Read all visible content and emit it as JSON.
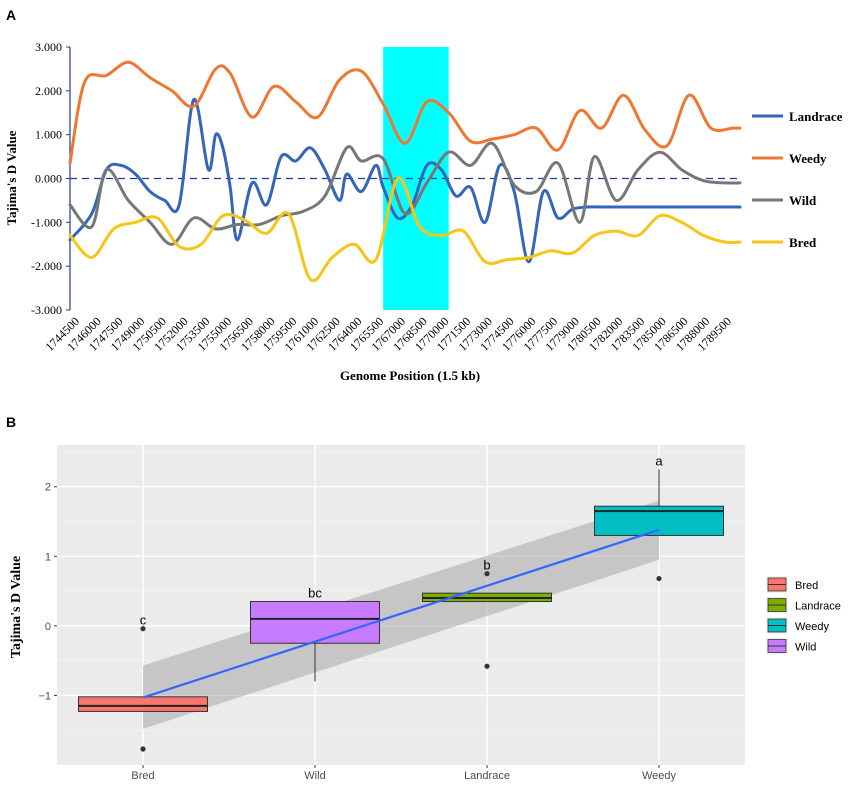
{
  "chart_data": [
    {
      "panel_label": "A",
      "type": "line",
      "xlabel": "Genome Position (1.5 kb)",
      "ylabel": "Tajima's D Value",
      "ylim": [
        -3,
        3
      ],
      "y_ticks": [
        "3.000",
        "2.000",
        "1.000",
        "0.000",
        "-1.000",
        "-2.000",
        "-3.000"
      ],
      "x_ticks": [
        "1744500",
        "1746000",
        "1747500",
        "1749000",
        "1750500",
        "1752000",
        "1753500",
        "1755000",
        "1756500",
        "1758000",
        "1759500",
        "1761000",
        "1762500",
        "1764000",
        "1765500",
        "1767000",
        "1768500",
        "1770000",
        "1771500",
        "1773000",
        "1774500",
        "1776000",
        "1777500",
        "1779000",
        "1780500",
        "1782000",
        "1783500",
        "1785000",
        "1786500",
        "1788000",
        "1789500"
      ],
      "highlight_region": {
        "from": 1765500,
        "to": 1770000,
        "color": "#00FFFF"
      },
      "reference_line": {
        "y": 0,
        "style": "dashed",
        "color": "#1F3C99"
      },
      "legend_placement": "right",
      "series": [
        {
          "name": "Landrace",
          "color": "#3366BB",
          "x": [
            1744000,
            1745500,
            1746500,
            1747500,
            1748500,
            1749500,
            1750500,
            1751500,
            1752500,
            1753500,
            1754000,
            1754500,
            1755000,
            1755500,
            1756500,
            1757500,
            1758500,
            1759500,
            1760500,
            1761500,
            1762500,
            1763000,
            1764000,
            1765000,
            1765500,
            1766500,
            1767500,
            1768500,
            1769500,
            1770500,
            1771500,
            1772500,
            1773500,
            1774500,
            1775500,
            1776500,
            1777500,
            1778500,
            1779500,
            1780500,
            1781500,
            1782500,
            1783500,
            1784500,
            1785000,
            1785500,
            1786500,
            1787500,
            1788500,
            1789500,
            1790000
          ],
          "y": [
            -1.4,
            -0.8,
            0.2,
            0.3,
            0.1,
            -0.3,
            -0.5,
            -0.6,
            1.8,
            0.2,
            1.0,
            0.7,
            -0.2,
            -1.4,
            -0.1,
            -0.6,
            0.5,
            0.4,
            0.7,
            0.2,
            -0.5,
            0.1,
            -0.3,
            0.3,
            -0.2,
            -0.9,
            -0.6,
            0.3,
            0.2,
            -0.4,
            -0.2,
            -1.0,
            0.3,
            -0.3,
            -1.9,
            -0.3,
            -0.9,
            -0.7,
            -0.65,
            -0.65,
            -0.65,
            -0.65,
            -0.65,
            -0.65,
            -0.65,
            -0.65,
            -0.65,
            -0.65,
            -0.65,
            -0.65,
            -0.65
          ]
        },
        {
          "name": "Weedy",
          "color": "#EE7733",
          "x": [
            1744000,
            1745000,
            1746500,
            1748000,
            1749500,
            1751000,
            1752500,
            1754000,
            1755000,
            1756500,
            1758000,
            1759500,
            1761000,
            1762500,
            1764000,
            1765500,
            1767000,
            1768500,
            1770000,
            1771500,
            1773000,
            1774500,
            1776000,
            1777500,
            1779000,
            1780500,
            1782000,
            1783500,
            1785000,
            1786500,
            1788000,
            1789500,
            1790000
          ],
          "y": [
            0.35,
            2.2,
            2.35,
            2.65,
            2.3,
            2.0,
            1.65,
            2.5,
            2.4,
            1.4,
            2.1,
            1.75,
            1.4,
            2.25,
            2.45,
            1.7,
            0.8,
            1.75,
            1.5,
            0.85,
            0.9,
            1.0,
            1.15,
            0.65,
            1.55,
            1.15,
            1.9,
            1.1,
            0.75,
            1.9,
            1.15,
            1.15,
            1.15
          ]
        },
        {
          "name": "Wild",
          "color": "#777777",
          "x": [
            1744000,
            1745500,
            1746500,
            1748000,
            1749500,
            1751000,
            1752500,
            1754000,
            1755500,
            1757000,
            1758500,
            1760000,
            1761500,
            1763000,
            1764000,
            1765500,
            1767000,
            1768500,
            1770000,
            1771500,
            1773000,
            1774500,
            1776000,
            1777500,
            1779000,
            1780000,
            1781500,
            1783000,
            1784500,
            1786000,
            1787500,
            1789000,
            1790000
          ],
          "y": [
            -0.6,
            -1.1,
            0.2,
            -0.5,
            -1.0,
            -1.5,
            -0.9,
            -1.15,
            -1.05,
            -1.05,
            -0.85,
            -0.75,
            -0.4,
            0.7,
            0.4,
            0.45,
            -0.8,
            -0.1,
            0.6,
            0.3,
            0.8,
            -0.15,
            -0.3,
            0.35,
            -1.0,
            0.5,
            -0.5,
            0.2,
            0.6,
            0.2,
            -0.05,
            -0.1,
            -0.1
          ]
        },
        {
          "name": "Bred",
          "color": "#F5C518",
          "x": [
            1744000,
            1745500,
            1747000,
            1748500,
            1750000,
            1751500,
            1753000,
            1754500,
            1756000,
            1757500,
            1759000,
            1760500,
            1762000,
            1763500,
            1765000,
            1766500,
            1768000,
            1769500,
            1771000,
            1772500,
            1774000,
            1775500,
            1777000,
            1778500,
            1780000,
            1781500,
            1783000,
            1784500,
            1786000,
            1787500,
            1789000,
            1790000
          ],
          "y": [
            -1.3,
            -1.8,
            -1.15,
            -1.0,
            -0.9,
            -1.55,
            -1.5,
            -0.85,
            -0.95,
            -1.25,
            -0.8,
            -2.3,
            -1.8,
            -1.5,
            -1.85,
            0.0,
            -1.1,
            -1.3,
            -1.2,
            -1.9,
            -1.85,
            -1.8,
            -1.65,
            -1.7,
            -1.3,
            -1.2,
            -1.3,
            -0.85,
            -1.0,
            -1.3,
            -1.45,
            -1.45
          ]
        }
      ]
    },
    {
      "panel_label": "B",
      "type": "box",
      "ylabel": "Tajima's D Value",
      "ylim": [
        -2,
        2.6
      ],
      "y_ticks": [
        "-1",
        "0",
        "1",
        "2"
      ],
      "categories": [
        "Bred",
        "Wild",
        "Landrace",
        "Weedy"
      ],
      "group_letters": [
        "c",
        "bc",
        "b",
        "a"
      ],
      "boxes": [
        {
          "name": "Bred",
          "color": "#F8766D",
          "q1": -1.23,
          "median": -1.15,
          "q3": -1.02,
          "whisker_low": -1.23,
          "whisker_high": -1.02,
          "outliers": [
            -0.04,
            -1.77
          ]
        },
        {
          "name": "Wild",
          "color": "#C77CFF",
          "q1": -0.25,
          "median": 0.1,
          "q3": 0.35,
          "whisker_low": -0.8,
          "whisker_high": 0.35,
          "outliers": []
        },
        {
          "name": "Landrace",
          "color": "#7CAE00",
          "q1": 0.35,
          "median": 0.4,
          "q3": 0.47,
          "whisker_low": 0.35,
          "whisker_high": 0.47,
          "outliers": [
            0.75,
            -0.58
          ]
        },
        {
          "name": "Weedy",
          "color": "#00BFC4",
          "q1": 1.3,
          "median": 1.65,
          "q3": 1.72,
          "whisker_low": 1.3,
          "whisker_high": 2.25,
          "outliers": [
            0.68
          ]
        }
      ],
      "trend_line": {
        "color": "#3366FF",
        "start": -1.03,
        "end": 1.38,
        "ci_start": [
          -1.48,
          -0.57
        ],
        "ci_end": [
          0.95,
          1.8
        ]
      },
      "legend_placement": "right",
      "legend_entries": [
        "Bred",
        "Landrace",
        "Weedy",
        "Wild"
      ]
    }
  ]
}
